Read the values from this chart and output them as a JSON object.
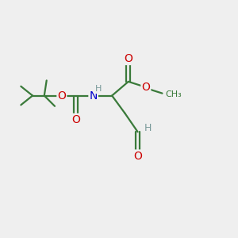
{
  "bg_color": "#efefef",
  "bond_color": "#3a7a3a",
  "O_color": "#cc0000",
  "N_color": "#0000cc",
  "H_color": "#7a9a9a",
  "line_width": 1.6,
  "figsize": [
    3.0,
    3.0
  ],
  "dpi": 100,
  "xlim": [
    0,
    10
  ],
  "ylim": [
    0,
    10
  ]
}
